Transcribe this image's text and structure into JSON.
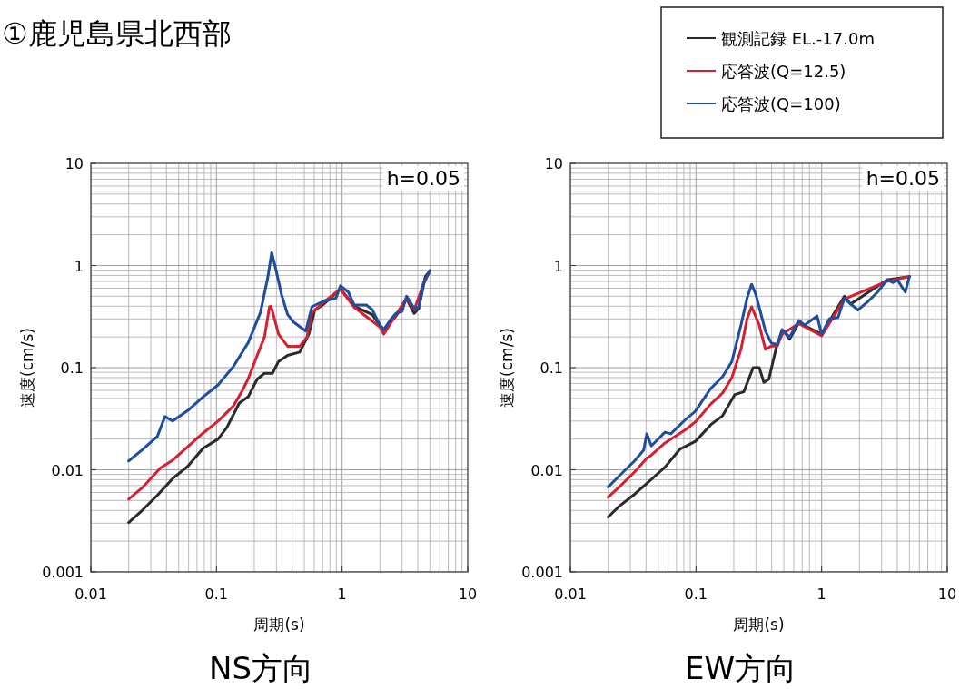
{
  "chart_data": [
    {
      "type": "line",
      "title": "①鹿児島県北西部",
      "subtitle": "NS方向",
      "xlabel": "周期(s)",
      "ylabel": "速度(cm/s)",
      "log": "xy",
      "grid": true,
      "legend": false,
      "annotations": [
        "h=0.05"
      ],
      "xlim": [
        0.01,
        10
      ],
      "ylim": [
        0.001,
        10
      ],
      "xticks": [
        0.01,
        0.1,
        1,
        10
      ],
      "yticks": [
        0.001,
        0.01,
        0.1,
        1,
        10
      ],
      "series": [
        {
          "color": "#2b2b2b",
          "x": [
            0.02,
            0.0257,
            0.0339,
            0.0448,
            0.059,
            0.078,
            0.103,
            0.121,
            0.152,
            0.179,
            0.211,
            0.241,
            0.279,
            0.312,
            0.368,
            0.46,
            0.543,
            0.607,
            0.716,
            0.97,
            1.25,
            1.74,
            2.0,
            2.15,
            2.68,
            3.26,
            3.75,
            4.07,
            4.6,
            5.0
          ],
          "values": [
            0.00305,
            0.00402,
            0.00564,
            0.0082,
            0.0108,
            0.0162,
            0.02,
            0.026,
            0.045,
            0.052,
            0.077,
            0.088,
            0.088,
            0.115,
            0.132,
            0.142,
            0.213,
            0.367,
            0.42,
            0.59,
            0.4,
            0.33,
            0.26,
            0.236,
            0.32,
            0.47,
            0.34,
            0.38,
            0.78,
            0.89
          ]
        },
        {
          "color": "#d42030",
          "x": [
            0.02,
            0.0257,
            0.0358,
            0.0448,
            0.059,
            0.078,
            0.103,
            0.136,
            0.16,
            0.179,
            0.211,
            0.241,
            0.264,
            0.272,
            0.312,
            0.368,
            0.46,
            0.525,
            0.574,
            0.716,
            0.97,
            1.25,
            2.0,
            2.15,
            2.68,
            3.26,
            3.75,
            4.45,
            5.0
          ],
          "values": [
            0.00516,
            0.00668,
            0.0104,
            0.0124,
            0.0168,
            0.0228,
            0.03,
            0.042,
            0.059,
            0.078,
            0.132,
            0.199,
            0.394,
            0.4,
            0.213,
            0.162,
            0.162,
            0.199,
            0.343,
            0.44,
            0.59,
            0.39,
            0.25,
            0.213,
            0.33,
            0.48,
            0.37,
            0.66,
            0.89
          ]
        },
        {
          "color": "#1f4e9e",
          "x": [
            0.02,
            0.0257,
            0.0339,
            0.0389,
            0.0448,
            0.059,
            0.078,
            0.103,
            0.136,
            0.179,
            0.224,
            0.257,
            0.275,
            0.295,
            0.33,
            0.368,
            0.411,
            0.514,
            0.574,
            0.716,
            0.895,
            0.97,
            1.12,
            1.25,
            1.56,
            1.74,
            2.0,
            2.15,
            2.4,
            2.68,
            3.0,
            3.26,
            3.75,
            4.07,
            4.45,
            5.0
          ],
          "values": [
            0.0122,
            0.0157,
            0.0213,
            0.0332,
            0.03,
            0.038,
            0.0516,
            0.0678,
            0.102,
            0.176,
            0.348,
            0.78,
            1.34,
            0.95,
            0.516,
            0.332,
            0.28,
            0.228,
            0.394,
            0.45,
            0.48,
            0.634,
            0.55,
            0.41,
            0.41,
            0.37,
            0.261,
            0.236,
            0.29,
            0.34,
            0.355,
            0.5,
            0.38,
            0.39,
            0.68,
            0.89
          ]
        }
      ]
    },
    {
      "type": "line",
      "subtitle": "EW方向",
      "xlabel": "周期(s)",
      "ylabel": "速度(cm/s)",
      "log": "xy",
      "grid": true,
      "legend": "top right",
      "annotations": [
        "h=0.05"
      ],
      "xlim": [
        0.01,
        10
      ],
      "ylim": [
        0.001,
        10
      ],
      "xticks": [
        0.01,
        0.1,
        1,
        10
      ],
      "yticks": [
        0.001,
        0.01,
        0.1,
        1,
        10
      ],
      "series": [
        {
          "name": "観測記録 EL.-17.0m",
          "color": "#2b2b2b",
          "x": [
            0.02,
            0.0245,
            0.0324,
            0.0429,
            0.0566,
            0.0748,
            0.099,
            0.131,
            0.163,
            0.204,
            0.24,
            0.285,
            0.319,
            0.347,
            0.38,
            0.444,
            0.5,
            0.556,
            0.658,
            1.0,
            1.52,
            1.7,
            3.32,
            5.0
          ],
          "values": [
            0.00345,
            0.0044,
            0.00576,
            0.0078,
            0.0106,
            0.016,
            0.019,
            0.0276,
            0.0339,
            0.0546,
            0.058,
            0.1,
            0.1,
            0.0716,
            0.077,
            0.174,
            0.228,
            0.19,
            0.275,
            0.213,
            0.5,
            0.42,
            0.726,
            0.78
          ]
        },
        {
          "name": "応答波(Q=12.5)",
          "color": "#d42030",
          "x": [
            0.02,
            0.0245,
            0.0324,
            0.0406,
            0.0441,
            0.0566,
            0.0838,
            0.099,
            0.131,
            0.163,
            0.193,
            0.228,
            0.255,
            0.277,
            0.319,
            0.357,
            0.398,
            0.444,
            0.484,
            0.658,
            1.0,
            1.52,
            3.32,
            5.0
          ],
          "values": [
            0.0054,
            0.0068,
            0.0095,
            0.013,
            0.0139,
            0.0183,
            0.025,
            0.0295,
            0.044,
            0.0565,
            0.08,
            0.151,
            0.3,
            0.394,
            0.261,
            0.151,
            0.163,
            0.163,
            0.213,
            0.27,
            0.205,
            0.47,
            0.7,
            0.78
          ]
        },
        {
          "name": "応答波(Q=100)",
          "color": "#1f4e9e",
          "x": [
            0.02,
            0.0245,
            0.0324,
            0.0383,
            0.0406,
            0.0441,
            0.0566,
            0.063,
            0.0838,
            0.099,
            0.131,
            0.163,
            0.193,
            0.228,
            0.255,
            0.277,
            0.3,
            0.357,
            0.398,
            0.444,
            0.484,
            0.556,
            0.658,
            0.73,
            0.92,
            1.0,
            1.15,
            1.35,
            1.52,
            1.7,
            1.95,
            2.36,
            2.79,
            3.32,
            3.7,
            4.0,
            4.63,
            5.0
          ],
          "values": [
            0.0068,
            0.0087,
            0.0122,
            0.0155,
            0.0225,
            0.0171,
            0.0233,
            0.0225,
            0.0316,
            0.0375,
            0.0625,
            0.082,
            0.115,
            0.261,
            0.48,
            0.655,
            0.516,
            0.228,
            0.174,
            0.168,
            0.236,
            0.199,
            0.29,
            0.261,
            0.32,
            0.213,
            0.3,
            0.31,
            0.48,
            0.42,
            0.367,
            0.45,
            0.55,
            0.726,
            0.68,
            0.726,
            0.55,
            0.78
          ]
        }
      ]
    }
  ]
}
